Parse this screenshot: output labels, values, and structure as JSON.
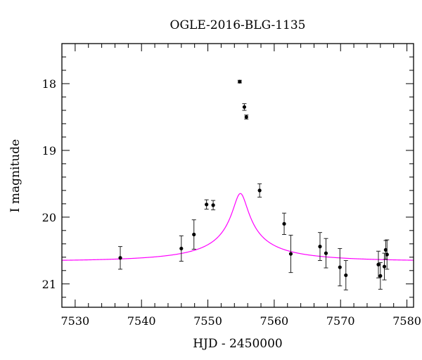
{
  "chart_data": {
    "type": "scatter",
    "title": "OGLE-2016-BLG-1135",
    "xlabel": "HJD - 2450000",
    "ylabel": "I magnitude",
    "xlim": [
      7528,
      7581
    ],
    "ylim": [
      21.35,
      17.4
    ],
    "y_inverted": true,
    "x_ticks": [
      7530,
      7540,
      7550,
      7560,
      7570,
      7580
    ],
    "y_ticks": [
      18,
      19,
      20,
      21
    ],
    "grid": false,
    "legend": "none",
    "colors": {
      "model": "#ff00ff",
      "points": "#000000"
    },
    "series": [
      {
        "type": "scatter",
        "points": [
          {
            "x": 7536.8,
            "y": 20.61,
            "err": 0.17
          },
          {
            "x": 7546.0,
            "y": 20.47,
            "err": 0.19
          },
          {
            "x": 7547.9,
            "y": 20.26,
            "err": 0.22
          },
          {
            "x": 7549.8,
            "y": 19.81,
            "err": 0.07
          },
          {
            "x": 7550.8,
            "y": 19.82,
            "err": 0.07
          },
          {
            "x": 7554.8,
            "y": 17.97,
            "err": 0.02
          },
          {
            "x": 7555.5,
            "y": 18.35,
            "err": 0.05
          },
          {
            "x": 7555.8,
            "y": 18.5,
            "err": 0.03
          },
          {
            "x": 7557.8,
            "y": 19.6,
            "err": 0.1
          },
          {
            "x": 7561.5,
            "y": 20.1,
            "err": 0.16
          },
          {
            "x": 7562.5,
            "y": 20.55,
            "err": 0.28
          },
          {
            "x": 7566.9,
            "y": 20.44,
            "err": 0.21
          },
          {
            "x": 7567.8,
            "y": 20.54,
            "err": 0.22
          },
          {
            "x": 7569.9,
            "y": 20.75,
            "err": 0.28
          },
          {
            "x": 7570.8,
            "y": 20.87,
            "err": 0.22
          },
          {
            "x": 7575.7,
            "y": 20.71,
            "err": 0.2
          },
          {
            "x": 7576.0,
            "y": 20.88,
            "err": 0.2
          },
          {
            "x": 7576.6,
            "y": 20.74,
            "err": 0.2
          },
          {
            "x": 7576.8,
            "y": 20.49,
            "err": 0.14
          },
          {
            "x": 7577.0,
            "y": 20.56,
            "err": 0.22
          }
        ]
      },
      {
        "type": "line",
        "model": "point-lens",
        "params": {
          "t0": 7554.9,
          "tE": 18,
          "u0": 0.058,
          "fs": 0.095,
          "i_base": 20.66
        }
      }
    ]
  }
}
